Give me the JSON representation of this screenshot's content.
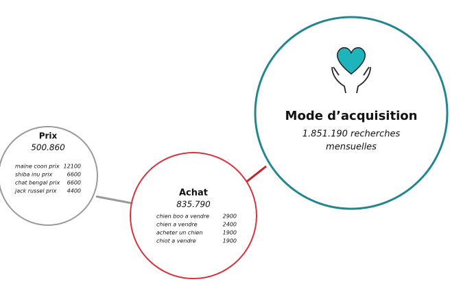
{
  "hub": {
    "title": "Mode d’acquisition",
    "subtitle_lines": [
      "1.851.190 recherches",
      "mensuelles"
    ]
  },
  "nodes": [
    {
      "title": "Achat",
      "total": "835.790",
      "keywords": [
        {
          "term": "chien boo a vendre",
          "volume": "2900"
        },
        {
          "term": "chien a vendre",
          "volume": "2400"
        },
        {
          "term": "acheter un chien",
          "volume": "1900"
        },
        {
          "term": "chiot a vendre",
          "volume": "1900"
        }
      ]
    },
    {
      "title": "Prix",
      "total": "500.860",
      "keywords": [
        {
          "term": "maine coon prix",
          "volume": "12100"
        },
        {
          "term": "shiba inu prix",
          "volume": "6600"
        },
        {
          "term": "chat bengal prix",
          "volume": "6600"
        },
        {
          "term": "jack russel prix",
          "volume": "4400"
        }
      ]
    }
  ]
}
